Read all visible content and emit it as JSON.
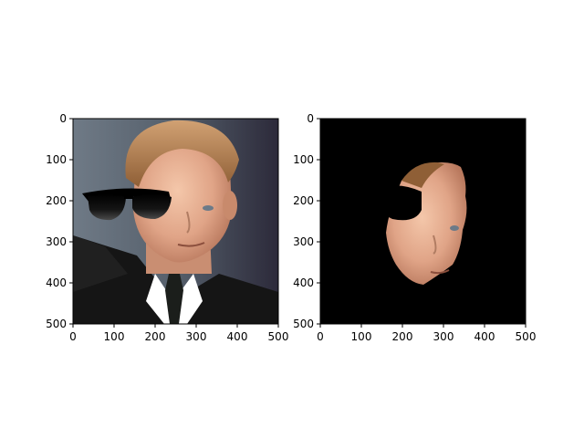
{
  "figure": {
    "background": "#ffffff",
    "panels": [
      {
        "id": "left",
        "image_description_name": "portrait-with-sunglasses",
        "axes": {
          "xticks": [
            "0",
            "100",
            "200",
            "300",
            "400",
            "500"
          ],
          "yticks": [
            "0",
            "100",
            "200",
            "300",
            "400",
            "500"
          ]
        }
      },
      {
        "id": "right",
        "image_description_name": "face-mask-cutout",
        "axes": {
          "xticks": [
            "0",
            "100",
            "200",
            "300",
            "400",
            "500"
          ],
          "yticks": [
            "0",
            "100",
            "200",
            "300",
            "400",
            "500"
          ]
        }
      }
    ]
  },
  "colors": {
    "tie": "#1b1e1b",
    "face_light": "#f4c7aa",
    "hair": "#b07c4c",
    "suit": "#151515",
    "sunglasses": "#000000",
    "mask_background": "#000000",
    "photo_background_left": "#6f7a86",
    "photo_background_right": "#2c2a3a",
    "skin": "#e0a487",
    "shirt": "#ffffff"
  }
}
